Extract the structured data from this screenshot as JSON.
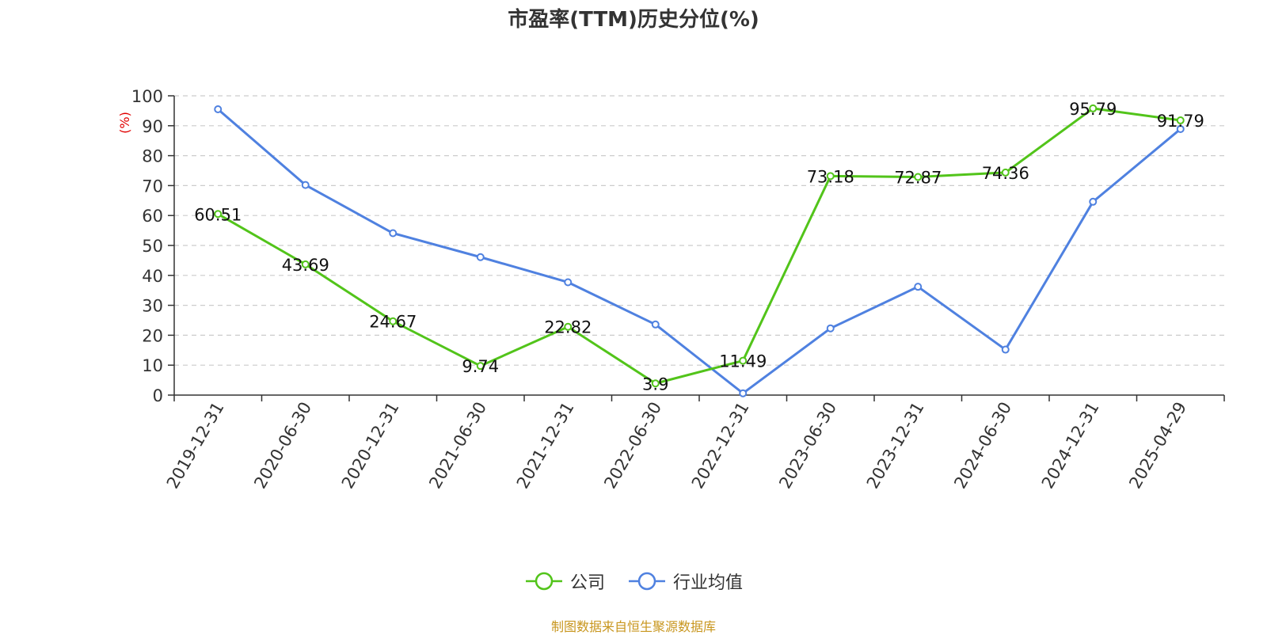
{
  "chart_data": {
    "type": "line",
    "title": "市盈率(TTM)历史分位(%)",
    "ylabel": "(%)",
    "ylim": [
      0,
      100
    ],
    "yticks": [
      0,
      10,
      20,
      30,
      40,
      50,
      60,
      70,
      80,
      90,
      100
    ],
    "categories": [
      "2019-12-31",
      "2020-06-30",
      "2020-12-31",
      "2021-06-30",
      "2021-12-31",
      "2022-06-30",
      "2022-12-31",
      "2023-06-30",
      "2023-12-31",
      "2024-06-30",
      "2024-12-31",
      "2025-04-29"
    ],
    "series": [
      {
        "name": "公司",
        "color": "#52c41a",
        "values": [
          60.51,
          43.69,
          24.67,
          9.74,
          22.82,
          3.9,
          11.49,
          73.18,
          72.87,
          74.36,
          95.79,
          91.79
        ],
        "data_labels": true
      },
      {
        "name": "行业均值",
        "color": "#4f81e0",
        "values": [
          95.5,
          70.2,
          54.1,
          46.1,
          37.7,
          23.6,
          0.6,
          22.3,
          36.2,
          15.2,
          64.6,
          88.9
        ],
        "data_labels": false
      }
    ],
    "grid": true,
    "legend_position": "bottom-center"
  },
  "ylabel_color": "#e00000",
  "source_text": "制图数据来自恒生聚源数据库",
  "source_color": "#c8961e"
}
